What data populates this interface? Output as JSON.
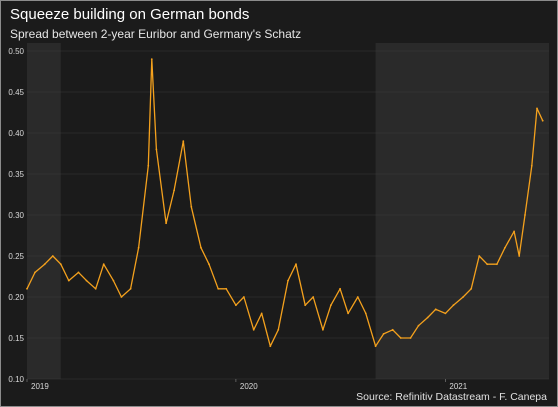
{
  "title": "Squeeze building on German bonds",
  "subtitle": "Spread between 2-year Euribor and Germany's Schatz",
  "source": "Source: Refinitiv Datastream - F. Canepa",
  "colors": {
    "background": "#1b1b1b",
    "shaded_band": "#2a2a2a",
    "line": "#f4a11d",
    "gridline": "#3a3a3a",
    "text": "#ffffff"
  },
  "chart_data": {
    "type": "line",
    "title": "Squeeze building on German bonds",
    "subtitle": "Spread between 2-year Euribor and Germany's Schatz",
    "xlabel": "",
    "ylabel": "",
    "ylim": [
      0.1,
      0.5
    ],
    "xlim": [
      "2019-01-01",
      "2021-07-01"
    ],
    "y_ticks": [
      "0.10",
      "0.15",
      "0.20",
      "0.25",
      "0.30",
      "0.35",
      "0.40",
      "0.45",
      "0.50"
    ],
    "y_tick_values": [
      0.1,
      0.15,
      0.2,
      0.25,
      0.3,
      0.35,
      0.4,
      0.45,
      0.5
    ],
    "x_ticks": [
      {
        "label": "2019",
        "date": "2019-01-01"
      },
      {
        "label": "2020",
        "date": "2020-01-01"
      },
      {
        "label": "2021",
        "date": "2021-01-01"
      }
    ],
    "shaded_periods": [
      [
        "2019-01-01",
        "2019-03-01"
      ],
      [
        "2020-09-01",
        "2021-07-01"
      ]
    ],
    "grid": "horizontal",
    "series": [
      {
        "color": "#f4a11d",
        "x": [
          "2019-01-01",
          "2019-01-15",
          "2019-02-01",
          "2019-02-15",
          "2019-03-01",
          "2019-03-15",
          "2019-04-01",
          "2019-04-15",
          "2019-05-01",
          "2019-05-15",
          "2019-06-01",
          "2019-06-15",
          "2019-07-01",
          "2019-07-15",
          "2019-08-01",
          "2019-08-07",
          "2019-08-15",
          "2019-09-01",
          "2019-09-15",
          "2019-10-01",
          "2019-10-15",
          "2019-11-01",
          "2019-11-15",
          "2019-12-01",
          "2019-12-15",
          "2020-01-01",
          "2020-01-15",
          "2020-02-01",
          "2020-02-15",
          "2020-03-01",
          "2020-03-15",
          "2020-04-01",
          "2020-04-15",
          "2020-05-01",
          "2020-05-15",
          "2020-06-01",
          "2020-06-15",
          "2020-07-01",
          "2020-07-15",
          "2020-08-01",
          "2020-08-15",
          "2020-09-01",
          "2020-09-15",
          "2020-10-01",
          "2020-10-15",
          "2020-11-01",
          "2020-11-15",
          "2020-12-01",
          "2020-12-15",
          "2021-01-01",
          "2021-01-15",
          "2021-02-01",
          "2021-02-15",
          "2021-03-01",
          "2021-03-15",
          "2021-04-01",
          "2021-04-15",
          "2021-05-01",
          "2021-05-10",
          "2021-05-20",
          "2021-06-01",
          "2021-06-10",
          "2021-06-20"
        ],
        "values": [
          0.21,
          0.23,
          0.24,
          0.25,
          0.24,
          0.22,
          0.23,
          0.22,
          0.21,
          0.24,
          0.22,
          0.2,
          0.21,
          0.26,
          0.36,
          0.49,
          0.38,
          0.29,
          0.33,
          0.39,
          0.31,
          0.26,
          0.24,
          0.21,
          0.21,
          0.19,
          0.2,
          0.16,
          0.18,
          0.14,
          0.16,
          0.22,
          0.24,
          0.19,
          0.2,
          0.16,
          0.19,
          0.21,
          0.18,
          0.2,
          0.18,
          0.14,
          0.155,
          0.16,
          0.15,
          0.15,
          0.165,
          0.175,
          0.185,
          0.18,
          0.19,
          0.2,
          0.21,
          0.25,
          0.24,
          0.24,
          0.26,
          0.28,
          0.25,
          0.3,
          0.36,
          0.43,
          0.415
        ]
      }
    ]
  }
}
